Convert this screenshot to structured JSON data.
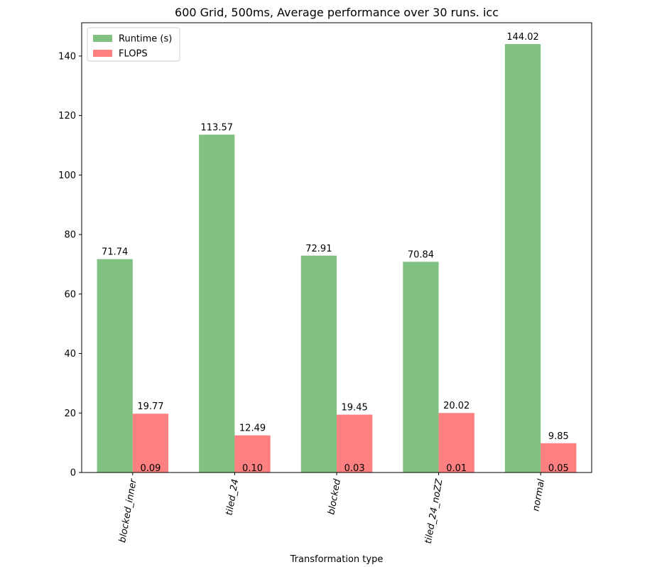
{
  "chart_data": {
    "type": "bar",
    "title": "600 Grid, 500ms, Average performance over 30 runs. icc",
    "xlabel": "Transformation type",
    "ylabel": "",
    "ylim": [
      0,
      151.2
    ],
    "yticks": [
      0,
      20,
      40,
      60,
      80,
      100,
      120,
      140
    ],
    "categories": [
      "blocked_inner",
      "tiled_24",
      "blocked",
      "tiled_24_noZZ",
      "normal"
    ],
    "series": [
      {
        "name": "Runtime (s)",
        "color": "#80c080",
        "values": [
          71.74,
          113.57,
          72.91,
          70.84,
          144.02
        ],
        "labels": [
          "71.74",
          "113.57",
          "72.91",
          "70.84",
          "144.02"
        ]
      },
      {
        "name": "FLOPS",
        "color": "#ff8080",
        "values": [
          19.77,
          12.49,
          19.45,
          20.02,
          9.85
        ],
        "labels": [
          "19.77",
          "12.49",
          "19.45",
          "20.02",
          "9.85"
        ],
        "secondary_labels": [
          "0.09",
          "0.10",
          "0.03",
          "0.01",
          "0.05"
        ]
      }
    ],
    "legend_position": "top-left",
    "grid": false
  }
}
